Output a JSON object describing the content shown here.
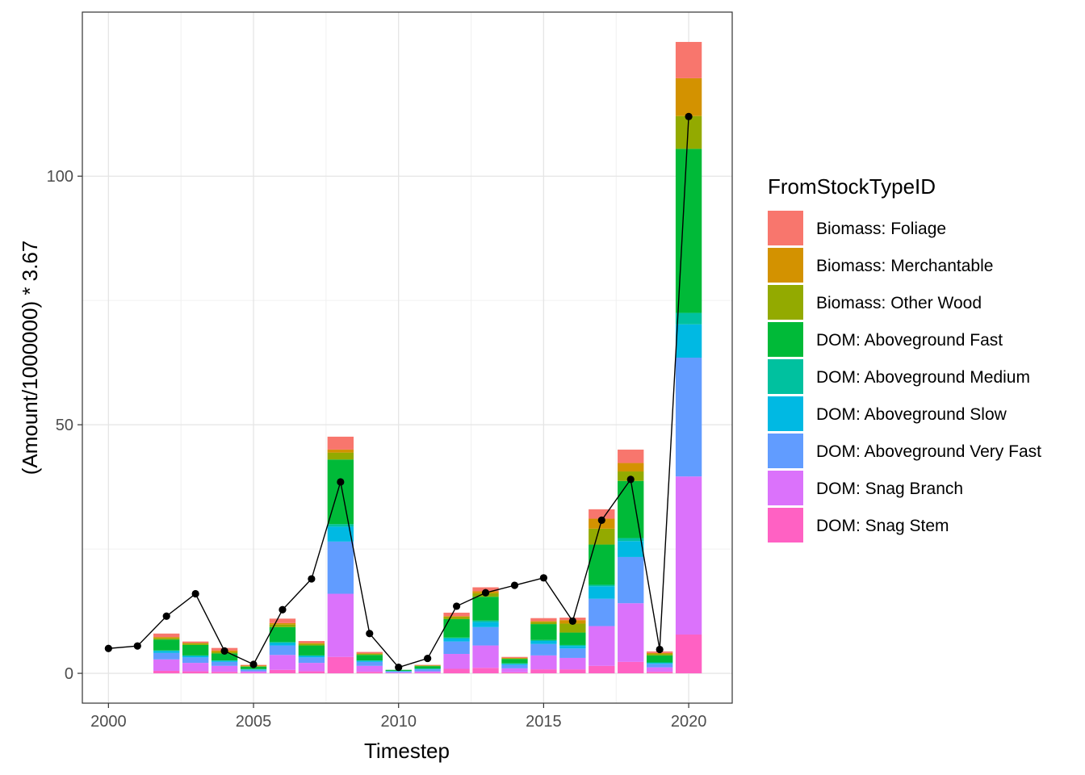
{
  "chart_data": {
    "type": "bar",
    "stacked": true,
    "xlabel": "Timestep",
    "ylabel": "(Amount/1000000) * 3.67",
    "xlim": [
      1999.1,
      2021.5
    ],
    "ylim": [
      -6,
      133
    ],
    "x_ticks": [
      2000,
      2005,
      2010,
      2015,
      2020
    ],
    "x_tick_labels": [
      "2000",
      "2005",
      "2010",
      "2015",
      "2020"
    ],
    "y_ticks": [
      0,
      50,
      100
    ],
    "y_tick_labels": [
      "0",
      "50",
      "100"
    ],
    "grid": true,
    "legend": {
      "title": "FromStockTypeID",
      "placement": "right",
      "entries": [
        "Biomass: Foliage",
        "Biomass: Merchantable",
        "Biomass: Other Wood",
        "DOM: Aboveground Fast",
        "DOM: Aboveground Medium",
        "DOM: Aboveground Slow",
        "DOM: Aboveground Very Fast",
        "DOM: Snag Branch",
        "DOM: Snag Stem"
      ]
    },
    "x": [
      2000,
      2001,
      2002,
      2003,
      2004,
      2005,
      2006,
      2007,
      2008,
      2009,
      2010,
      2011,
      2012,
      2013,
      2014,
      2015,
      2016,
      2017,
      2018,
      2019,
      2020
    ],
    "series": [
      {
        "name": "DOM: Snag Stem",
        "color": "#FF61C3",
        "values": [
          0,
          0,
          0.5,
          0.4,
          0.3,
          0.1,
          0.7,
          0.4,
          3.3,
          0.3,
          0.05,
          0.1,
          0.9,
          1.1,
          0.2,
          0.8,
          0.8,
          1.5,
          2.3,
          0.3,
          7.8
        ]
      },
      {
        "name": "DOM: Snag Branch",
        "color": "#DB72FB",
        "values": [
          0,
          0,
          2.3,
          1.7,
          1.2,
          0.3,
          3.0,
          1.7,
          12.7,
          1.2,
          0.15,
          0.3,
          3.0,
          4.5,
          0.8,
          2.8,
          2.3,
          8.0,
          11.8,
          0.9,
          31.8
        ]
      },
      {
        "name": "DOM: Aboveground Very Fast",
        "color": "#619CFF",
        "values": [
          0,
          0,
          1.3,
          1.1,
          0.8,
          0.3,
          1.9,
          1.1,
          10.5,
          0.8,
          0.2,
          0.4,
          2.5,
          3.7,
          0.7,
          2.3,
          1.9,
          5.5,
          9.3,
          0.7,
          23.9
        ]
      },
      {
        "name": "DOM: Aboveground Slow",
        "color": "#00B9E3",
        "values": [
          0,
          0,
          0.4,
          0.3,
          0.2,
          0.1,
          0.5,
          0.3,
          3.0,
          0.2,
          0.05,
          0.1,
          0.6,
          1.0,
          0.2,
          0.6,
          0.5,
          2.5,
          3.2,
          0.2,
          6.7
        ]
      },
      {
        "name": "DOM: Aboveground Medium",
        "color": "#00C19F",
        "values": [
          0,
          0,
          0.1,
          0.1,
          0.1,
          0.05,
          0.2,
          0.1,
          0.5,
          0.1,
          0.05,
          0.05,
          0.2,
          0.3,
          0.1,
          0.2,
          0.2,
          0.3,
          0.6,
          0.1,
          2.3
        ]
      },
      {
        "name": "DOM: Aboveground Fast",
        "color": "#00BA38",
        "values": [
          0,
          0,
          2.2,
          2.1,
          1.4,
          0.5,
          3.0,
          2.0,
          13.0,
          1.1,
          0.2,
          0.5,
          3.7,
          4.8,
          0.9,
          3.2,
          2.5,
          8.1,
          11.5,
          1.4,
          33.0
        ]
      },
      {
        "name": "Biomass: Other Wood",
        "color": "#93AA00",
        "values": [
          0,
          0,
          0.3,
          0.3,
          0.3,
          0.1,
          0.5,
          0.3,
          1.4,
          0.2,
          0,
          0.1,
          0.4,
          0.7,
          0.1,
          0.4,
          1.8,
          3.2,
          1.9,
          0.3,
          6.6
        ]
      },
      {
        "name": "Biomass: Merchantable",
        "color": "#D39200",
        "values": [
          0,
          0,
          0.2,
          0.1,
          0.3,
          0.1,
          0.3,
          0.2,
          0.6,
          0.1,
          0,
          0.05,
          0.2,
          0.4,
          0.1,
          0.2,
          0.7,
          2.0,
          1.7,
          0.2,
          7.6
        ]
      },
      {
        "name": "Biomass: Foliage",
        "color": "#F8766D",
        "values": [
          0,
          0,
          0.7,
          0.3,
          0.5,
          0.15,
          0.9,
          0.4,
          2.6,
          0.3,
          0,
          0.1,
          0.7,
          0.8,
          0.2,
          0.6,
          0.5,
          1.9,
          2.7,
          0.3,
          7.3
        ]
      }
    ],
    "line": {
      "color": "#000000",
      "values": [
        5.0,
        5.5,
        11.5,
        16.0,
        4.5,
        1.8,
        12.8,
        19.0,
        38.5,
        8.0,
        1.2,
        3.0,
        13.5,
        16.2,
        17.7,
        19.2,
        10.5,
        30.8,
        39.0,
        4.8,
        112.0
      ]
    }
  }
}
